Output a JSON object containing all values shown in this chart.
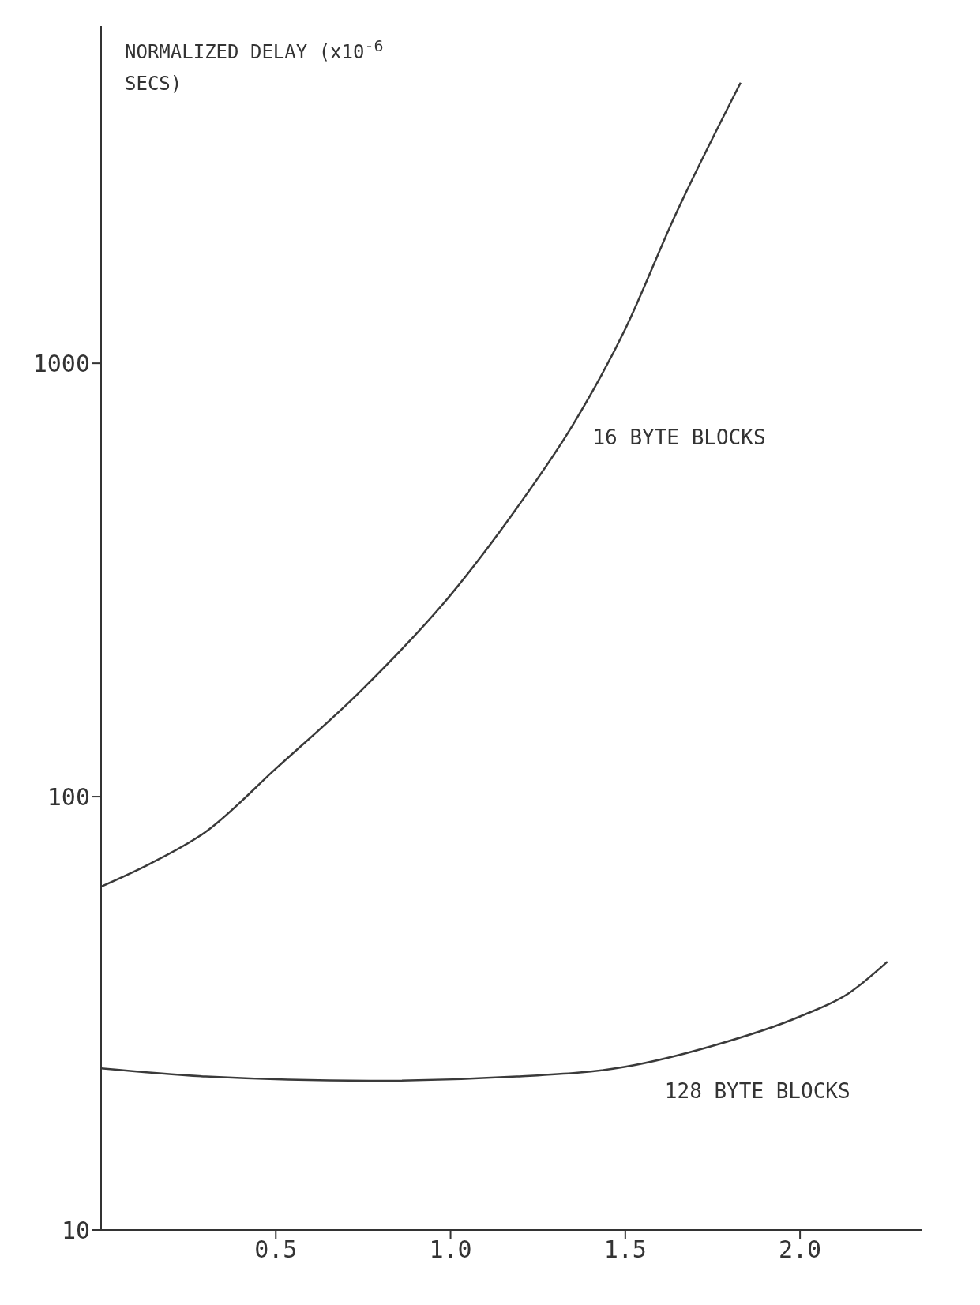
{
  "chart_data": {
    "type": "line",
    "ylabel": "NORMALIZED DELAY (x10$^{-6}$ SECS)",
    "log": "y",
    "grid": false,
    "legend": false,
    "marker": "none",
    "line_style": "solid",
    "xlim": [
      0,
      2.35
    ],
    "xticks": [
      {
        "value": 0.5,
        "label": "0.5"
      },
      {
        "value": 1,
        "label": "1.0"
      },
      {
        "value": 1.5,
        "label": "1.5"
      },
      {
        "value": 2,
        "label": "2.0"
      }
    ],
    "ylim": [
      10,
      6000
    ],
    "yticks": [
      10,
      100,
      1000
    ],
    "series": [
      {
        "name": "16 BYTE BLOCKS",
        "color": "#3a3a3a",
        "x": [
          0,
          0.14,
          0.3,
          0.5,
          0.745,
          1.0,
          1.19,
          1.35,
          1.5,
          1.64,
          1.83
        ],
        "values": [
          62,
          70,
          83,
          116,
          176,
          292,
          464,
          721,
          1200,
          2170,
          4440
        ]
      },
      {
        "name": "128 BYTE BLOCKS",
        "color": "#3a3a3a",
        "x": [
          0,
          0.3,
          0.77,
          1.19,
          1.5,
          1.75,
          2.0,
          2.14,
          2.25
        ],
        "values": [
          23.6,
          22.6,
          22.1,
          22.6,
          23.8,
          26.6,
          31.1,
          35.2,
          41.6
        ]
      }
    ]
  }
}
